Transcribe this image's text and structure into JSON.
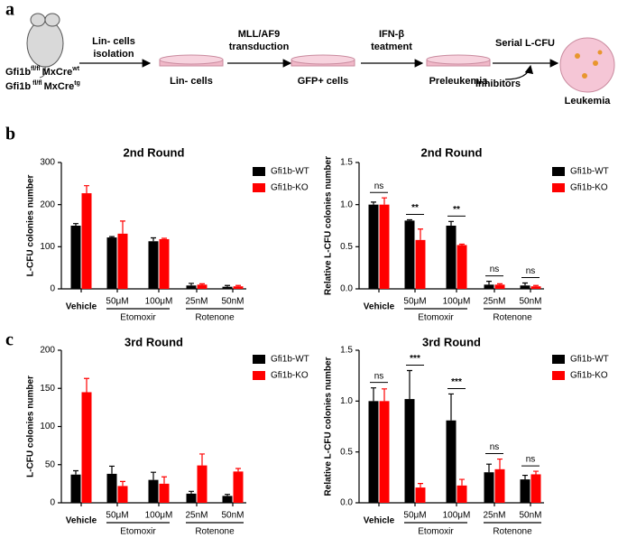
{
  "panel_labels": [
    "a",
    "b",
    "c"
  ],
  "workflow": {
    "mouse_lines": [
      [
        "Gfi1b",
        "fl/fl",
        "MxCre",
        "wt"
      ],
      [
        "Gfi1b",
        "fl/fl",
        "MxCre",
        "tg"
      ]
    ],
    "arrows": [
      [
        "Lin- cells",
        "isolation"
      ],
      [
        "MLL/AF9",
        "transduction"
      ],
      [
        "IFN-β",
        "teatment"
      ],
      [
        "Serial L-CFU"
      ]
    ],
    "stages": [
      "Lin- cells",
      "GFP+ cells",
      "Preleukemia",
      "Leukemia"
    ],
    "inhibitors": "Inhibitors"
  },
  "chart_data": [
    {
      "type": "bar",
      "title": "2nd Round",
      "ylabel": "L-CFU colonies number",
      "categories": [
        "Vehicle",
        "50μM",
        "100μM",
        "25nM",
        "50nM"
      ],
      "groups": [
        "Etomoxir",
        "Rotenone"
      ],
      "series": [
        {
          "name": "Gfi1b-WT",
          "color": "#000000",
          "values": [
            150,
            122,
            113,
            8,
            5
          ],
          "errors": [
            5,
            2,
            8,
            5,
            3
          ]
        },
        {
          "name": "Gfi1b-KO",
          "color": "#ff0000",
          "values": [
            227,
            131,
            118,
            10,
            6
          ],
          "errors": [
            18,
            30,
            2,
            2,
            2
          ]
        }
      ],
      "ylim": [
        0,
        300
      ],
      "yticks": [
        0,
        100,
        200,
        300
      ]
    },
    {
      "type": "bar",
      "title": "2nd Round",
      "ylabel": "Relative L-CFU colonies number",
      "categories": [
        "Vehicle",
        "50μM",
        "100μM",
        "25nM",
        "50nM"
      ],
      "groups": [
        "Etomoxir",
        "Rotenone"
      ],
      "series": [
        {
          "name": "Gfi1b-WT",
          "color": "#000000",
          "values": [
            1.0,
            0.81,
            0.75,
            0.05,
            0.04
          ],
          "errors": [
            0.03,
            0.01,
            0.05,
            0.04,
            0.03
          ]
        },
        {
          "name": "Gfi1b-KO",
          "color": "#ff0000",
          "values": [
            1.0,
            0.58,
            0.52,
            0.05,
            0.03
          ],
          "errors": [
            0.08,
            0.13,
            0.01,
            0.01,
            0.01
          ]
        }
      ],
      "annotations": [
        "ns",
        "**",
        "**",
        "ns",
        "ns"
      ],
      "ylim": [
        0,
        1.5
      ],
      "yticks": [
        {
          "value": 0,
          "label": "0.0"
        },
        0.5,
        {
          "value": 1,
          "label": "1.0"
        },
        1.5
      ]
    },
    {
      "type": "bar",
      "title": "3rd Round",
      "ylabel": "L-CFU colonies number",
      "categories": [
        "Vehicle",
        "50μM",
        "100μM",
        "25nM",
        "50nM"
      ],
      "groups": [
        "Etomoxir",
        "Rotenone"
      ],
      "series": [
        {
          "name": "Gfi1b-WT",
          "color": "#000000",
          "values": [
            37,
            38,
            30,
            12,
            9
          ],
          "errors": [
            5,
            10,
            10,
            3,
            2
          ]
        },
        {
          "name": "Gfi1b-KO",
          "color": "#ff0000",
          "values": [
            145,
            22,
            25,
            49,
            41
          ],
          "errors": [
            18,
            6,
            9,
            15,
            4
          ]
        }
      ],
      "ylim": [
        0,
        200
      ],
      "yticks": [
        0,
        50,
        100,
        150,
        200
      ]
    },
    {
      "type": "bar",
      "title": "3rd Round",
      "ylabel": "Relative L-CFU colonies number",
      "categories": [
        "Vehicle",
        "50μM",
        "100μM",
        "25nM",
        "50nM"
      ],
      "groups": [
        "Etomoxir",
        "Rotenone"
      ],
      "series": [
        {
          "name": "Gfi1b-WT",
          "color": "#000000",
          "values": [
            1.0,
            1.02,
            0.81,
            0.3,
            0.23
          ],
          "errors": [
            0.13,
            0.28,
            0.26,
            0.08,
            0.04
          ]
        },
        {
          "name": "Gfi1b-KO",
          "color": "#ff0000",
          "values": [
            1.0,
            0.15,
            0.17,
            0.33,
            0.28
          ],
          "errors": [
            0.12,
            0.04,
            0.06,
            0.1,
            0.03
          ]
        }
      ],
      "annotations": [
        "ns",
        "***",
        "***",
        "ns",
        "ns"
      ],
      "ylim": [
        0,
        1.5
      ],
      "yticks": [
        {
          "value": 0,
          "label": "0.0"
        },
        0.5,
        {
          "value": 1,
          "label": "1.0"
        },
        1.5
      ]
    }
  ]
}
